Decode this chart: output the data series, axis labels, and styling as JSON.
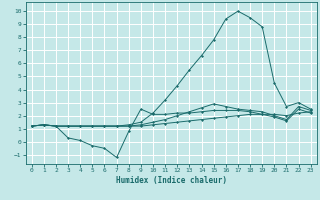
{
  "xlabel": "Humidex (Indice chaleur)",
  "bg_color": "#c5e8e8",
  "grid_color": "#b0d8d8",
  "line_color": "#1a6b6b",
  "xlim": [
    -0.5,
    23.5
  ],
  "ylim": [
    -1.7,
    10.7
  ],
  "xticks": [
    0,
    1,
    2,
    3,
    4,
    5,
    6,
    7,
    8,
    9,
    10,
    11,
    12,
    13,
    14,
    15,
    16,
    17,
    18,
    19,
    20,
    21,
    22,
    23
  ],
  "yticks": [
    -1,
    0,
    1,
    2,
    3,
    4,
    5,
    6,
    7,
    8,
    9,
    10
  ],
  "lines": [
    [
      1.2,
      1.3,
      1.2,
      1.2,
      1.2,
      1.2,
      1.2,
      1.2,
      1.2,
      1.2,
      1.3,
      1.4,
      1.5,
      1.6,
      1.7,
      1.8,
      1.9,
      2.0,
      2.1,
      2.1,
      2.1,
      2.0,
      2.2,
      2.3
    ],
    [
      1.2,
      1.3,
      1.2,
      0.3,
      0.1,
      -0.3,
      -0.5,
      -1.2,
      0.8,
      2.5,
      2.1,
      2.1,
      2.2,
      2.2,
      2.3,
      2.4,
      2.4,
      2.4,
      2.3,
      2.1,
      1.9,
      1.6,
      2.5,
      2.2
    ],
    [
      1.2,
      1.3,
      1.2,
      1.2,
      1.2,
      1.2,
      1.2,
      1.2,
      1.3,
      1.5,
      2.2,
      3.2,
      4.3,
      5.5,
      6.6,
      7.8,
      9.4,
      10.0,
      9.5,
      8.8,
      4.5,
      2.7,
      3.0,
      2.5
    ],
    [
      1.2,
      1.3,
      1.2,
      1.2,
      1.2,
      1.2,
      1.2,
      1.2,
      1.2,
      1.3,
      1.5,
      1.7,
      2.0,
      2.3,
      2.6,
      2.9,
      2.7,
      2.5,
      2.4,
      2.3,
      2.0,
      1.7,
      2.7,
      2.4
    ]
  ]
}
